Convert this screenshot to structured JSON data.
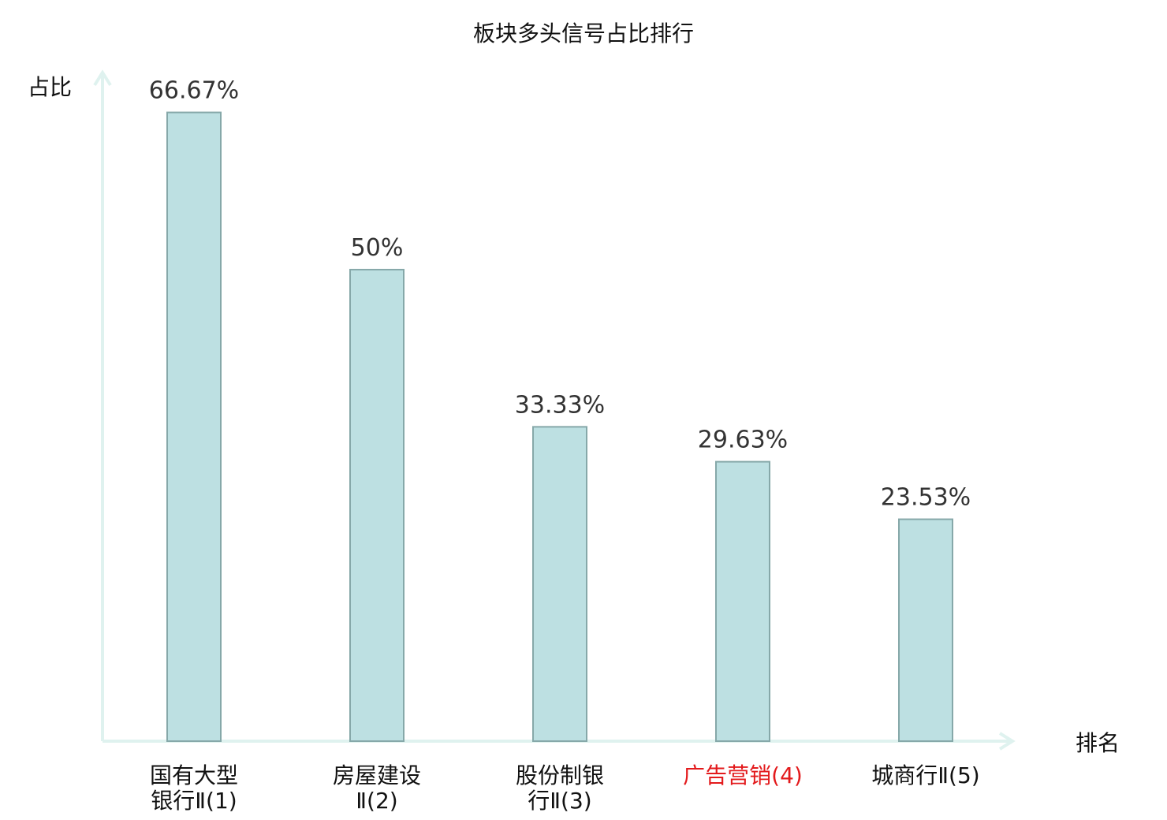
{
  "chart_data": {
    "type": "bar",
    "title": "板块多头信号占比排行",
    "ylabel": "占比",
    "xlabel": "排名",
    "ylim": [
      0,
      70
    ],
    "grid": false,
    "categories": [
      {
        "lines": [
          "国有大型",
          "银行Ⅱ(1)"
        ],
        "highlight": false
      },
      {
        "lines": [
          "房屋建设",
          "Ⅱ(2)"
        ],
        "highlight": false
      },
      {
        "lines": [
          "股份制银",
          "行Ⅱ(3)"
        ],
        "highlight": false
      },
      {
        "lines": [
          "广告营销(4)"
        ],
        "highlight": true
      },
      {
        "lines": [
          "城商行Ⅱ(5)"
        ],
        "highlight": false
      }
    ],
    "values": [
      66.67,
      50,
      33.33,
      29.63,
      23.53
    ],
    "value_labels": [
      "66.67%",
      "50%",
      "33.33%",
      "29.63%",
      "23.53%"
    ],
    "colors": {
      "bar_fill": "#bde0e2",
      "bar_stroke": "#86a8a9",
      "axis": "#dff2ef",
      "label_default": "#111111",
      "label_highlight": "#e31a1c"
    }
  }
}
